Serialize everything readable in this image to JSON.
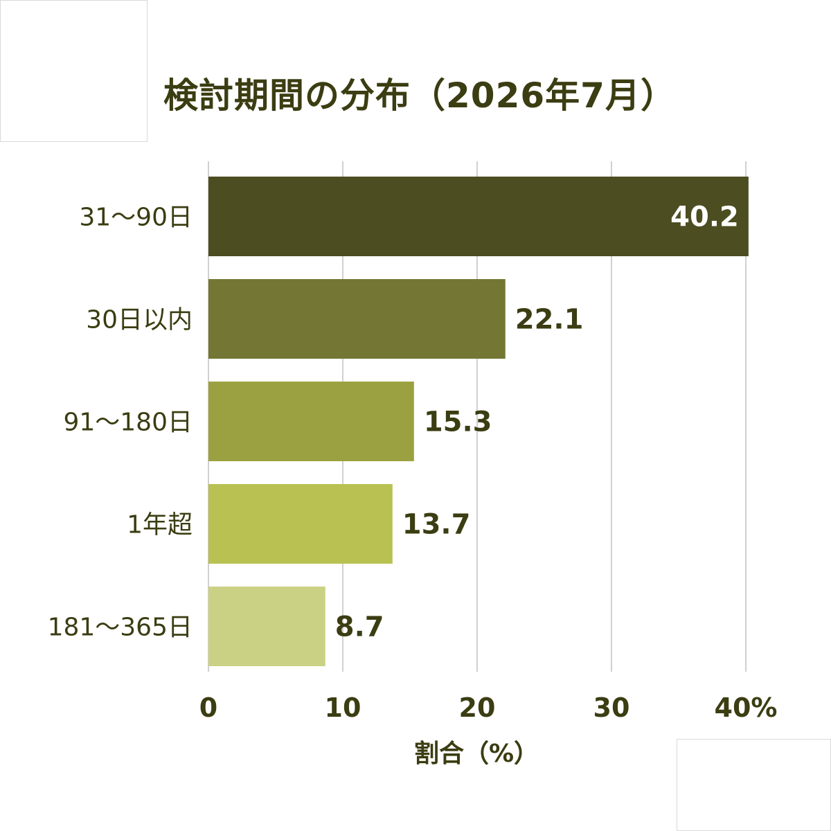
{
  "chart_data": {
    "type": "bar",
    "orientation": "horizontal",
    "title": "検討期間の分布（2026年7月）",
    "xlabel": "割合（%）",
    "ylabel": "",
    "categories": [
      "31〜90日",
      "30日以内",
      "91〜180日",
      "1年超",
      "181〜365日"
    ],
    "values": [
      40.2,
      22.1,
      15.3,
      13.7,
      8.7
    ],
    "value_labels": [
      "40.2",
      "22.1",
      "15.3",
      "13.7",
      "8.7"
    ],
    "xlim": [
      0,
      40
    ],
    "xticks": [
      0,
      10,
      20,
      30,
      40
    ],
    "xtick_labels": [
      "0",
      "10",
      "20",
      "30",
      "40%"
    ],
    "grid": "vertical",
    "legend": "none",
    "bar_colors": [
      "#4d4d22",
      "#737733",
      "#9ba140",
      "#b8c152",
      "#cbd184"
    ],
    "text_color": "#3b3d12",
    "inside_label_color": "#ffffff"
  }
}
